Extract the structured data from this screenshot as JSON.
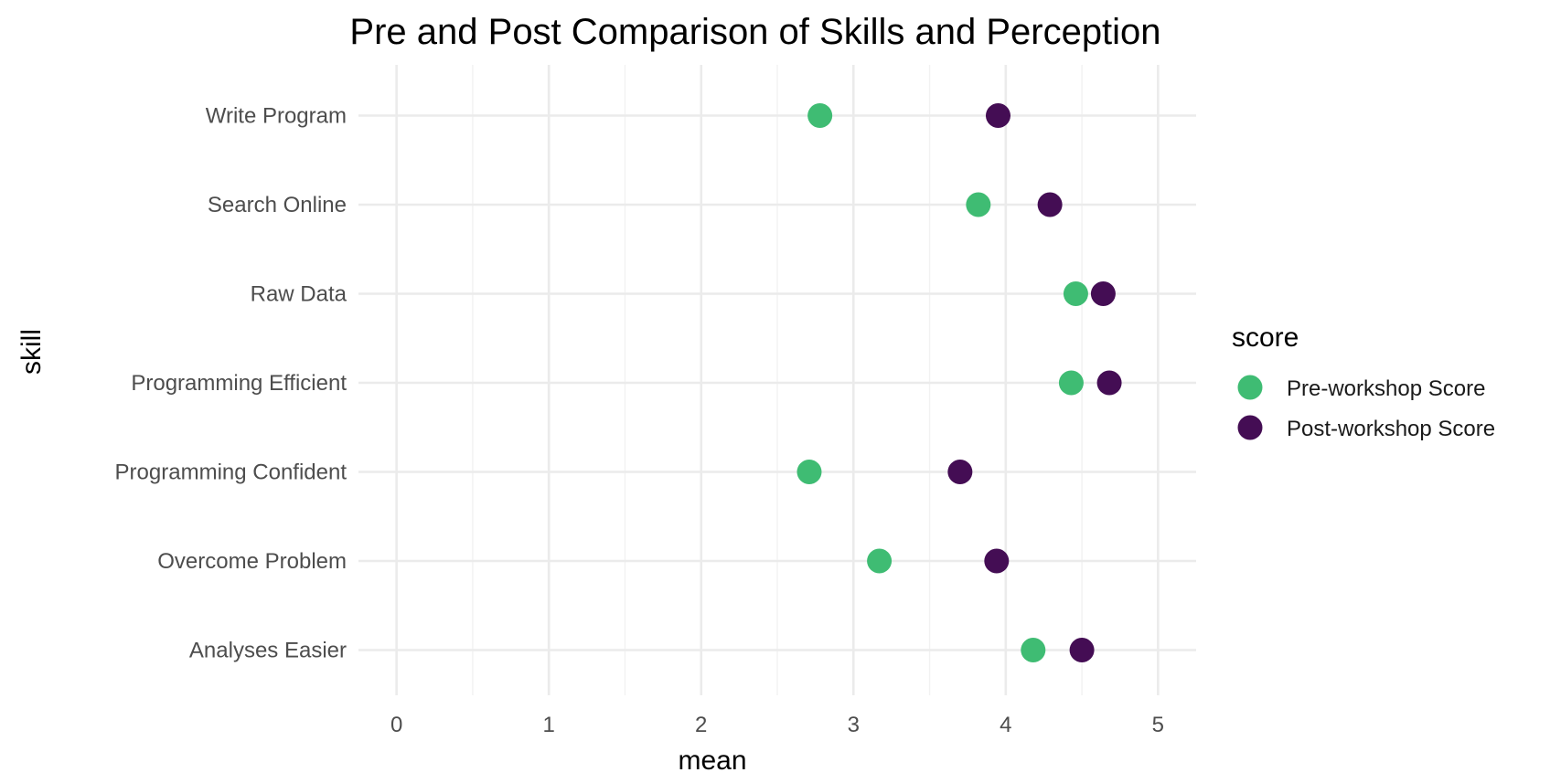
{
  "chart_data": {
    "type": "scatter",
    "title": "Pre and Post Comparison of Skills and Perception",
    "xlabel": "mean",
    "ylabel": "skill",
    "xlim": [
      -0.25,
      5.25
    ],
    "x_ticks": [
      "0",
      "1",
      "2",
      "3",
      "4",
      "5"
    ],
    "x_tick_values": [
      0,
      1,
      2,
      3,
      4,
      5
    ],
    "grid": true,
    "categories": [
      "Write Program",
      "Search Online",
      "Raw Data",
      "Programming Efficient",
      "Programming Confident",
      "Overcome Problem",
      "Analyses Easier"
    ],
    "legend": {
      "title": "score",
      "position": "right"
    },
    "series": [
      {
        "name": "Pre-workshop Score",
        "color": "#3fbc73",
        "values": [
          2.78,
          3.82,
          4.46,
          4.43,
          2.71,
          3.17,
          4.18
        ]
      },
      {
        "name": "Post-workshop Score",
        "color": "#440d54",
        "values": [
          3.95,
          4.29,
          4.64,
          4.68,
          3.7,
          3.94,
          4.5
        ]
      }
    ]
  }
}
